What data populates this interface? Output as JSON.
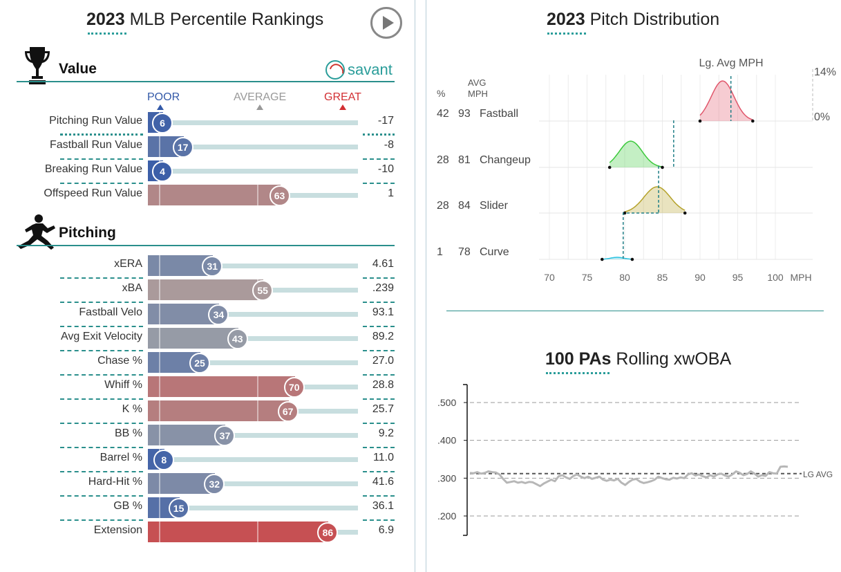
{
  "percentile": {
    "title_bold": "2023",
    "title_rest": "MLB Percentile Rankings",
    "scale": {
      "poor": "POOR",
      "average": "AVERAGE",
      "great": "GREAT"
    },
    "brand": "savant",
    "colors": {
      "poor": "#3359a8",
      "average": "#a6a6a6",
      "great": "#d22f33",
      "track": "#c8dedf",
      "accent": "#2a8f8c"
    },
    "sections": [
      {
        "title": "Value",
        "icon": "trophy-icon",
        "rows": [
          {
            "label": "Pitching Run Value",
            "percentile": 6,
            "value": "-17"
          },
          {
            "label": "Fastball Run Value",
            "percentile": 17,
            "value": "-8"
          },
          {
            "label": "Breaking Run Value",
            "percentile": 4,
            "value": "-10"
          },
          {
            "label": "Offspeed Run Value",
            "percentile": 63,
            "value": "1"
          }
        ]
      },
      {
        "title": "Pitching",
        "icon": "pitcher-icon",
        "rows": [
          {
            "label": "xERA",
            "percentile": 31,
            "value": "4.61"
          },
          {
            "label": "xBA",
            "percentile": 55,
            "value": ".239"
          },
          {
            "label": "Fastball Velo",
            "percentile": 34,
            "value": "93.1"
          },
          {
            "label": "Avg Exit Velocity",
            "percentile": 43,
            "value": "89.2"
          },
          {
            "label": "Chase %",
            "percentile": 25,
            "value": "27.0"
          },
          {
            "label": "Whiff %",
            "percentile": 70,
            "value": "28.8"
          },
          {
            "label": "K %",
            "percentile": 67,
            "value": "25.7"
          },
          {
            "label": "BB %",
            "percentile": 37,
            "value": "9.2"
          },
          {
            "label": "Barrel %",
            "percentile": 8,
            "value": "11.0"
          },
          {
            "label": "Hard-Hit %",
            "percentile": 32,
            "value": "41.6"
          },
          {
            "label": "GB %",
            "percentile": 15,
            "value": "36.1"
          },
          {
            "label": "Extension",
            "percentile": 86,
            "value": "6.9"
          }
        ]
      }
    ]
  },
  "pitch_distribution": {
    "title_bold": "2023",
    "title_rest": "Pitch Distribution",
    "col_pct": "%",
    "col_avg": "AVG",
    "col_mph": "MPH",
    "lg_avg_label": "Lg. Avg MPH",
    "pct_max_label": "14%",
    "pct_min_label": "0%",
    "x_unit": "MPH"
  },
  "rolling": {
    "title_bold": "100 PAs",
    "title_rest": "Rolling xwOBA",
    "lg_avg_label": "LG AVG"
  },
  "chart_data": [
    {
      "type": "bar",
      "categories": [
        "Pitching Run Value",
        "Fastball Run Value",
        "Breaking Run Value",
        "Offspeed Run Value",
        "xERA",
        "xBA",
        "Fastball Velo",
        "Avg Exit Velocity",
        "Chase %",
        "Whiff %",
        "K %",
        "BB %",
        "Barrel %",
        "Hard-Hit %",
        "GB %",
        "Extension"
      ],
      "values": [
        6,
        17,
        4,
        63,
        31,
        55,
        34,
        43,
        25,
        70,
        67,
        37,
        8,
        32,
        15,
        86
      ],
      "ylim": [
        0,
        100
      ]
    },
    {
      "type": "area",
      "pitches": [
        {
          "name": "Fastball",
          "pct": 42,
          "avg_mph": 93,
          "min": 90,
          "max": 97,
          "peak": 93.0,
          "lg_avg": 94.1,
          "color": "#e0566b"
        },
        {
          "name": "Changeup",
          "pct": 28,
          "avg_mph": 81,
          "min": 78,
          "max": 85,
          "peak": 80.8,
          "lg_avg": 86.5,
          "color": "#3bc93b"
        },
        {
          "name": "Slider",
          "pct": 28,
          "avg_mph": 84,
          "min": 80,
          "max": 88,
          "peak": 84.3,
          "lg_avg": 84.5,
          "color": "#b5a22a"
        },
        {
          "name": "Curve",
          "pct": 1,
          "avg_mph": 78,
          "min": 77,
          "max": 81,
          "peak": 79,
          "lg_avg": 79.8,
          "color": "#2bc2e0"
        }
      ],
      "x_ticks": [
        70,
        75,
        80,
        85,
        90,
        95,
        100
      ],
      "xlim": [
        70,
        102
      ]
    },
    {
      "type": "line",
      "y_ticks": [
        ".500",
        ".400",
        ".300",
        ".200"
      ],
      "ylim": [
        0.16,
        0.54
      ],
      "lg_avg": 0.312,
      "values": [
        0.314,
        0.313,
        0.316,
        0.312,
        0.314,
        0.318,
        0.316,
        0.315,
        0.31,
        0.298,
        0.288,
        0.29,
        0.292,
        0.288,
        0.29,
        0.287,
        0.29,
        0.289,
        0.284,
        0.279,
        0.286,
        0.291,
        0.296,
        0.292,
        0.305,
        0.308,
        0.302,
        0.298,
        0.306,
        0.31,
        0.304,
        0.3,
        0.304,
        0.298,
        0.301,
        0.304,
        0.296,
        0.293,
        0.296,
        0.294,
        0.298,
        0.288,
        0.282,
        0.29,
        0.296,
        0.298,
        0.291,
        0.287,
        0.289,
        0.292,
        0.296,
        0.304,
        0.3,
        0.297,
        0.296,
        0.301,
        0.299,
        0.302,
        0.3,
        0.31,
        0.313,
        0.307,
        0.31,
        0.305,
        0.302,
        0.308,
        0.304,
        0.31,
        0.312,
        0.307,
        0.304,
        0.31,
        0.318,
        0.314,
        0.308,
        0.311,
        0.318,
        0.312,
        0.304,
        0.308,
        0.306,
        0.316,
        0.313,
        0.312,
        0.33,
        0.331,
        0.33
      ]
    }
  ]
}
